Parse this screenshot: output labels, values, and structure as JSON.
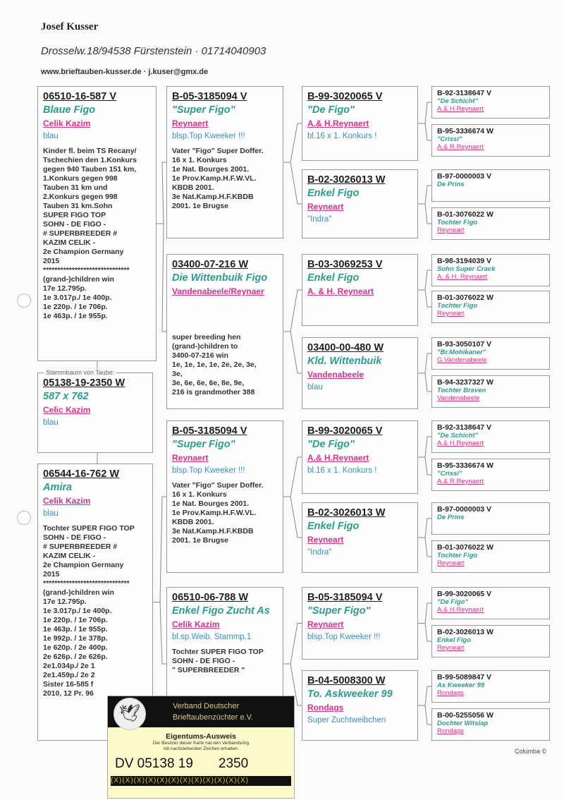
{
  "header": {
    "owner": "Josef Kusser",
    "address": "Drosselw.18/94538 Fürstenstein  ·  01714040903",
    "web": "www.brieftauben-kusser.de  ·  j.kuser@gmx.de"
  },
  "colors": {
    "ring": "#222222",
    "name": "#2a9d8f",
    "breeder": "#d6338a",
    "color_line": "#3a8fc8"
  },
  "subject": {
    "title": "Stammbaum von Taube:",
    "ring": "05138-19-2350 W",
    "name": "587 x 762",
    "breeder": "Celic Kazim",
    "color": "blau",
    "notes": []
  },
  "sire": {
    "ring": "06510-16-587 V",
    "name": "Blaue Figo",
    "breeder": "Celik Kazim",
    "color": "blau",
    "notes": [
      "Kinder fl. beim TS Recany/",
      "Tschechien den 1.Konkurs",
      "gegen 940 Tauben 151 km,",
      "1.Konkurs gegen 998",
      "Tauben 31 km und",
      "2.Konkurs gegen 998",
      "Tauben 31 km.Sohn",
      "SUPER FIGO TOP",
      "SOHN - DE FIGO -",
      "# SUPERBREEDER #",
      "KAZIM CELIK -",
      "2e Champion Germany",
      "2015",
      "******************************",
      "(grand-)children win",
      "17e 12.795p.",
      "1e 3.017p./ 1e 400p.",
      "1e 220p.  /  1e 706p.",
      "1e 463p.  / 1e 955p."
    ]
  },
  "dam": {
    "ring": "06544-16-762 W",
    "name": "Amira",
    "breeder": "Celik Kazim",
    "color": "blau",
    "notes": [
      "Tochter SUPER FIGO TOP",
      "SOHN - DE FIGO -",
      "# SUPERBREEDER #",
      "KAZIM CELIK -",
      "2e Champion Germany",
      "2015",
      "******************************",
      "(grand-)children win",
      "17e 12.795p.",
      "1e 3.017p./ 1e 400p.",
      "1e 220p.  /  1e 706p.",
      "1e 463p.  / 1e 955p.",
      "1e 992p.  / 1e 378p.",
      "1e 620p.  / 2e 400p.",
      "2e 626p.  / 2e 626p.",
      "2e1.034p./ 2e 1",
      "2e1.459p./ 2e 2",
      "Sister 16-585 f",
      "2010, 12 Pr. 96"
    ]
  },
  "gen2": [
    {
      "ring": "B-05-3185094 V",
      "name": "\"Super Figo\"",
      "breeder": "Reynaert",
      "color": "blsp.Top Kweeker !!!",
      "notes": [
        "Vater \"Figo\" Super Doffer.",
        "16 x 1. Konkurs",
        "1e Nat. Bourges 2001.",
        "1e Prov.Kamp.H.F.W.VL.",
        "KBDB 2001.",
        "3e Nat.Kamp.H.F.KBDB",
        "2001. 1e Brugse"
      ]
    },
    {
      "ring": "03400-07-216 W",
      "name": "Die Wittenbuik Figo",
      "breeder": "Vandenabeele/Reynaer",
      "color": "",
      "notes": [
        "",
        "",
        "super breeding hen",
        "(grand-)children to",
        "3400-07-216 win",
        "1e, 1e, 1e, 1e, 2e, 2e, 3e,",
        "3e,",
        "3e, 6e, 6e, 6e, 8e, 9e,",
        "216 is grandmother 388"
      ]
    },
    {
      "ring": "B-05-3185094 V",
      "name": "\"Super Figo\"",
      "breeder": "Reynaert",
      "color": "blsp.Top Kweeker !!!",
      "notes": [
        "Vater \"Figo\" Super Doffer.",
        "16 x 1. Konkurs",
        "1e Nat. Bourges 2001.",
        "1e Prov.Kamp.H.F.W.VL.",
        "KBDB 2001.",
        "3e Nat.Kamp.H.F.KBDB",
        "2001. 1e Brugse"
      ]
    },
    {
      "ring": "06510-06-788 W",
      "name": "Enkel Figo Zucht As",
      "breeder": "Celik Kazim",
      "color": "bl.sp.Weib. Stammp.1",
      "notes": [
        "Tochter SUPER FIGO TOP",
        "SOHN - DE FIGO -",
        "\" SUPERBREEDER \""
      ]
    }
  ],
  "gen3": [
    {
      "ring": "B-99-3020065 V",
      "name": "\"De Figo\"",
      "breeder": "A.& H.Reynaert",
      "color": "bl.16 x 1. Konkurs !"
    },
    {
      "ring": "B-02-3026013 W",
      "name": "Enkel Figo",
      "breeder": "Reyneart",
      "color": "\"Indra\""
    },
    {
      "ring": "B-03-3069253 V",
      "name": "Enkel Figo",
      "breeder": "A. & H. Reyneart",
      "color": ""
    },
    {
      "ring": "03400-00-480 W",
      "name": "Kld. Wittenbuik",
      "breeder": "Vandenabeele",
      "color": "blau"
    },
    {
      "ring": "B-99-3020065 V",
      "name": "\"De Figo\"",
      "breeder": "A.& H.Reynaert",
      "color": "bl.16 x 1. Konkurs !"
    },
    {
      "ring": "B-02-3026013 W",
      "name": "Enkel Figo",
      "breeder": "Reyneart",
      "color": "\"Indra\""
    },
    {
      "ring": "B-05-3185094 V",
      "name": "\"Super Figo\"",
      "breeder": "Reynaert",
      "color": "blsp.Top Kweeker !!!"
    },
    {
      "ring": "B-04-5008300 W",
      "name": "To. Askweeker 99",
      "breeder": "Rondags",
      "color": "Super Zuchtweibchen"
    }
  ],
  "gen4": [
    {
      "ring": "B-92-3138647 V",
      "name": "\"De Schicht\"",
      "breeder": "A.& H.Reynaert"
    },
    {
      "ring": "B-95-3336674 W",
      "name": "\"Crissi\"",
      "breeder": "A.& R.Reynaert"
    },
    {
      "ring": "B-97-0000003 V",
      "name": "De Prins",
      "breeder": ""
    },
    {
      "ring": "B-01-3076022 W",
      "name": "Tochter Figo",
      "breeder": "Reyneart"
    },
    {
      "ring": "B-98-3194039 V",
      "name": "Sohn Super Crack",
      "breeder": "A. & H. Reynaert"
    },
    {
      "ring": "B-01-3076022 W",
      "name": "Tochter Figo",
      "breeder": "Reyneart"
    },
    {
      "ring": "B-93-3050107 V",
      "name": "\"Br.Mohikaner\"",
      "breeder": "G.Vandenabeele"
    },
    {
      "ring": "B-94-3237327 W",
      "name": "Tochter Braven",
      "breeder": "Vandenabeele"
    },
    {
      "ring": "B-92-3138647 V",
      "name": "\"De Schicht\"",
      "breeder": "A.& H.Reynaert"
    },
    {
      "ring": "B-95-3336674 W",
      "name": "\"Crissi\"",
      "breeder": "A.& R.Reynaert"
    },
    {
      "ring": "B-97-0000003 V",
      "name": "De Prins",
      "breeder": ""
    },
    {
      "ring": "B-01-3076022 W",
      "name": "Tochter Figo",
      "breeder": "Reyneart"
    },
    {
      "ring": "B-99-3020065 V",
      "name": "\"De Figo\"",
      "breeder": "A.& H.Reynaert"
    },
    {
      "ring": "B-02-3026013 W",
      "name": "Enkel Figo",
      "breeder": "Reyneart"
    },
    {
      "ring": "B-99-5089847 V",
      "name": "As Kweeker 99",
      "breeder": "Rondags"
    },
    {
      "ring": "B-00-5255056 W",
      "name": "Dochter Witslap",
      "breeder": "Rondags"
    }
  ],
  "card": {
    "org_line1": "Verband Deutscher",
    "org_line2": "Brieftaubenzüchter e.V.",
    "title": "Eigentums-Ausweis",
    "sub_line1": "Der Besitzer dieser Karte hat den Verbandsring",
    "sub_line2": "mit nachstehenden Zeichen erhalten:",
    "ring_prefix": "DV 05138 19",
    "ring_number": "2350",
    "band_pattern": "(X)(X)(X)(X)(X)(X)(X)(X)(X)(X)(X)(X)"
  },
  "footer": {
    "credit": "Columba ©"
  }
}
